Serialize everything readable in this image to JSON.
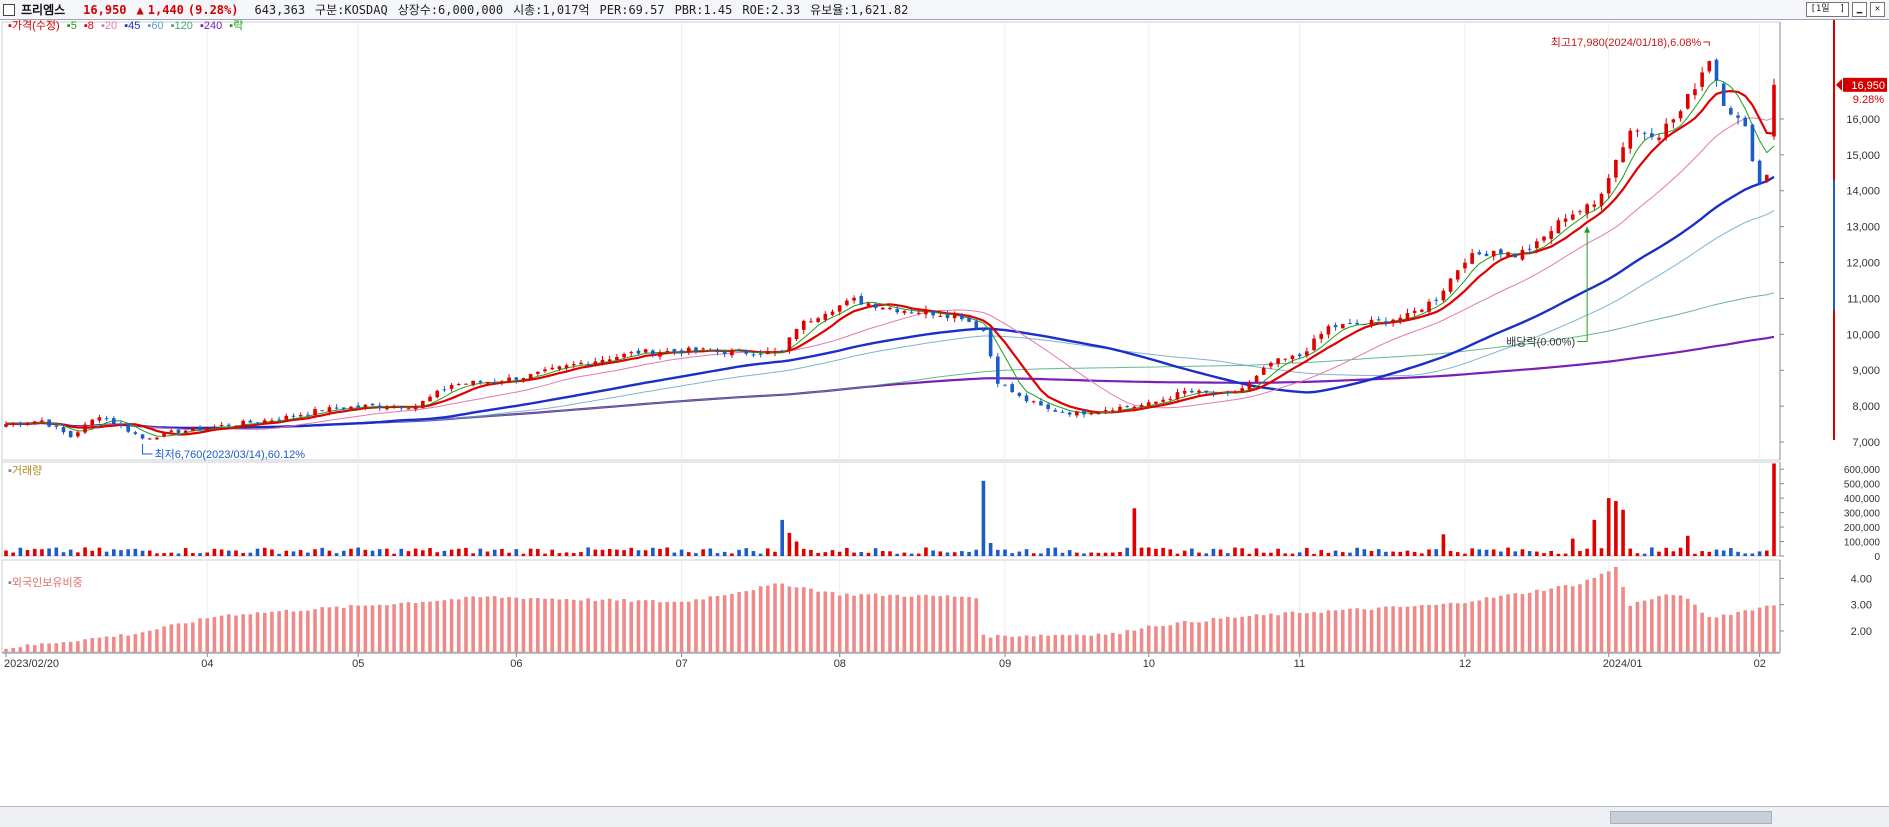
{
  "header": {
    "name": "프리엠스",
    "price": "16,950",
    "change_arrow": "▲",
    "change": "1,440",
    "change_pct": "(9.28%)",
    "volume": "643,363",
    "market": "구분:KOSDAQ",
    "shares": "상장수:6,000,000",
    "mcap": "시총:1,017억",
    "per": "PER:69.57",
    "pbr": "PBR:1.45",
    "roe": "ROE:2.33",
    "float": "유보율:1,621.82",
    "period_button": "1일"
  },
  "legend": {
    "price_label": "가격(수정)",
    "ma": [
      {
        "label": "5",
        "color": "#1aa01a"
      },
      {
        "label": "8",
        "color": "#e00000"
      },
      {
        "label": "20",
        "color": "#e07ab0"
      },
      {
        "label": "45",
        "color": "#1a2ec8"
      },
      {
        "label": "60",
        "color": "#60a0c8"
      },
      {
        "label": "120",
        "color": "#40a870"
      },
      {
        "label": "240",
        "color": "#7a20b8"
      }
    ],
    "dividend_label": "락"
  },
  "colors": {
    "up": "#e00000",
    "down": "#1a5cc8"
  },
  "chart_data": [
    {
      "type": "candlestick",
      "panel": "price",
      "ylim": [
        6500,
        18700
      ],
      "yticks": [
        7000,
        8000,
        9000,
        10000,
        11000,
        12000,
        13000,
        14000,
        15000,
        16000
      ],
      "ytick_labels": [
        "7,000",
        "8,000",
        "9,000",
        "10,000",
        "11,000",
        "12,000",
        "13,000",
        "14,000",
        "15,000",
        "16,000"
      ],
      "x_labels": [
        "2023/02/20",
        "04",
        "05",
        "06",
        "07",
        "08",
        "09",
        "10",
        "11",
        "12",
        "2024/01",
        "02"
      ],
      "x_label_index": [
        0,
        28,
        49,
        71,
        94,
        116,
        139,
        159,
        180,
        203,
        223,
        244
      ],
      "last_price": "16,950",
      "last_pct": "9.28%",
      "annotations": {
        "high": "최고17,980(2024/01/18),6.08%",
        "low": "최저6,760(2023/03/14),60.12%",
        "dividend": "배당락(0.00%)"
      },
      "anchors": [
        [
          0,
          7500
        ],
        [
          5,
          7600
        ],
        [
          9,
          7150
        ],
        [
          13,
          7750
        ],
        [
          16,
          7450
        ],
        [
          19,
          7100
        ],
        [
          24,
          7300
        ],
        [
          30,
          7450
        ],
        [
          38,
          7650
        ],
        [
          44,
          7900
        ],
        [
          50,
          8000
        ],
        [
          57,
          8000
        ],
        [
          62,
          8600
        ],
        [
          68,
          8700
        ],
        [
          73,
          8850
        ],
        [
          80,
          9200
        ],
        [
          88,
          9500
        ],
        [
          96,
          9550
        ],
        [
          103,
          9500
        ],
        [
          108,
          9500
        ],
        [
          110,
          10200
        ],
        [
          114,
          10650
        ],
        [
          118,
          10950
        ],
        [
          124,
          10700
        ],
        [
          129,
          10600
        ],
        [
          133,
          10500
        ],
        [
          136,
          10100
        ],
        [
          138,
          8700
        ],
        [
          141,
          8250
        ],
        [
          145,
          7900
        ],
        [
          149,
          7800
        ],
        [
          154,
          7950
        ],
        [
          157,
          8000
        ],
        [
          159,
          8050
        ],
        [
          164,
          8400
        ],
        [
          170,
          8300
        ],
        [
          173,
          8600
        ],
        [
          176,
          9200
        ],
        [
          180,
          9400
        ],
        [
          184,
          10200
        ],
        [
          189,
          10300
        ],
        [
          195,
          10500
        ],
        [
          199,
          11000
        ],
        [
          203,
          12100
        ],
        [
          207,
          12350
        ],
        [
          210,
          12200
        ],
        [
          213,
          12500
        ],
        [
          217,
          13300
        ],
        [
          221,
          13600
        ],
        [
          226,
          15700
        ],
        [
          230,
          15600
        ],
        [
          233,
          16200
        ],
        [
          237,
          17700
        ],
        [
          239,
          16500
        ],
        [
          242,
          15700
        ],
        [
          244,
          14200
        ],
        [
          245,
          14500
        ],
        [
          246,
          15500
        ]
      ]
    },
    {
      "type": "bar",
      "panel": "volume",
      "title": "거래량",
      "ylim": [
        0,
        650000
      ],
      "yticks": [
        0,
        100000,
        200000,
        300000,
        400000,
        500000,
        600000
      ],
      "ytick_labels": [
        "0",
        "100,000",
        "200,000",
        "300,000",
        "400,000",
        "500,000",
        "600,000"
      ],
      "spikes": [
        [
          108,
          250000
        ],
        [
          109,
          160000
        ],
        [
          110,
          100000
        ],
        [
          136,
          520000
        ],
        [
          137,
          90000
        ],
        [
          157,
          330000
        ],
        [
          200,
          150000
        ],
        [
          218,
          120000
        ],
        [
          221,
          250000
        ],
        [
          223,
          400000
        ],
        [
          224,
          380000
        ],
        [
          225,
          320000
        ],
        [
          234,
          140000
        ],
        [
          246,
          640000
        ]
      ]
    },
    {
      "type": "bar",
      "panel": "foreign",
      "title": "외국인보유비중",
      "ylim": [
        1.2,
        4.7
      ],
      "yticks": [
        2.0,
        3.0,
        4.0
      ],
      "ytick_labels": [
        "2.00",
        "3.00",
        "4.00"
      ],
      "anchors": [
        [
          0,
          1.35
        ],
        [
          18,
          1.9
        ],
        [
          30,
          2.6
        ],
        [
          49,
          2.95
        ],
        [
          67,
          3.3
        ],
        [
          94,
          3.1
        ],
        [
          108,
          3.8
        ],
        [
          116,
          3.4
        ],
        [
          135,
          3.3
        ],
        [
          136,
          1.8
        ],
        [
          155,
          1.9
        ],
        [
          158,
          2.15
        ],
        [
          170,
          2.5
        ],
        [
          180,
          2.7
        ],
        [
          200,
          3.0
        ],
        [
          210,
          3.4
        ],
        [
          219,
          3.8
        ],
        [
          224,
          4.4
        ],
        [
          226,
          3.0
        ],
        [
          230,
          3.3
        ],
        [
          233,
          3.4
        ],
        [
          237,
          2.5
        ],
        [
          246,
          3.0
        ]
      ]
    }
  ],
  "volume_panel": {
    "title": "거래량"
  },
  "foreign_panel": {
    "title": "외국인보유비중"
  }
}
